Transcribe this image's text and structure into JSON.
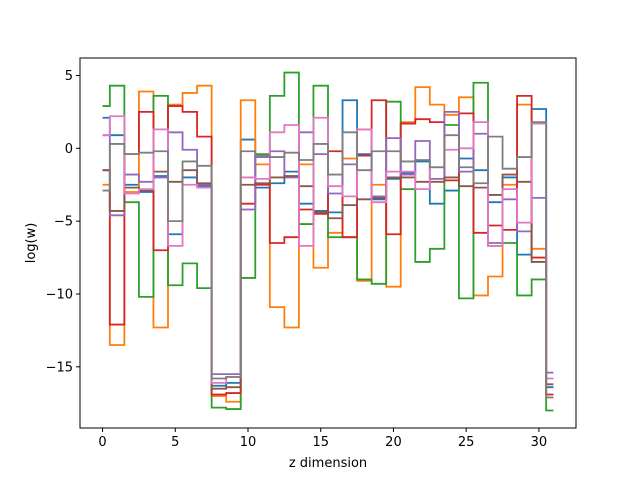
{
  "chart_data": {
    "type": "line",
    "style": "step",
    "xlabel": "z dimension",
    "ylabel": "log(w)",
    "xlim": [
      -1.55,
      32.55
    ],
    "ylim": [
      -19.2,
      6.2
    ],
    "xticks": [
      0,
      5,
      10,
      15,
      20,
      25,
      30
    ],
    "yticks": [
      5,
      0,
      -5,
      -10,
      -15
    ],
    "grid": false,
    "legend": "none",
    "x": [
      0,
      1,
      2,
      3,
      4,
      5,
      6,
      7,
      8,
      9,
      10,
      11,
      12,
      13,
      14,
      15,
      16,
      17,
      18,
      19,
      20,
      21,
      22,
      23,
      24,
      25,
      26,
      27,
      28,
      29,
      30,
      31
    ],
    "series": [
      {
        "color": "#1f77b4",
        "values": [
          2.1,
          0.9,
          -2.5,
          -3.0,
          -1.9,
          -5.9,
          -2.0,
          -2.6,
          -16.3,
          -16.1,
          0.6,
          -2.7,
          -2.4,
          -1.6,
          -3.8,
          -4.3,
          -4.4,
          3.3,
          -0.4,
          -3.5,
          -2.1,
          -1.7,
          -0.9,
          -3.8,
          -2.9,
          -0.7,
          -1.5,
          -3.7,
          -2.0,
          -7.3,
          2.7,
          -16.4
        ]
      },
      {
        "color": "#ff7f0e",
        "values": [
          -2.5,
          -13.5,
          -3.0,
          3.9,
          -12.3,
          3.0,
          3.8,
          4.3,
          -17.0,
          -17.4,
          3.3,
          -1.1,
          -10.9,
          -12.3,
          -1.1,
          -8.2,
          -5.8,
          -0.7,
          -9.1,
          -2.5,
          -9.5,
          1.8,
          4.2,
          3.0,
          2.3,
          3.5,
          -10.1,
          -8.8,
          -2.5,
          3.0,
          -6.9,
          -17.1
        ]
      },
      {
        "color": "#2ca02c",
        "values": [
          2.9,
          4.3,
          -3.7,
          -10.2,
          3.6,
          -9.4,
          -7.9,
          -9.6,
          -17.8,
          -17.9,
          -8.9,
          -0.4,
          3.6,
          5.2,
          -5.2,
          4.3,
          -6.1,
          -6.1,
          -9.0,
          -9.3,
          3.2,
          -2.8,
          -7.8,
          -6.9,
          1.6,
          -10.3,
          4.5,
          -6.7,
          -6.5,
          -10.1,
          -9.0,
          -18.0
        ]
      },
      {
        "color": "#d62728",
        "values": [
          -1.5,
          -12.1,
          -0.4,
          2.5,
          -7.0,
          2.9,
          2.5,
          0.8,
          -16.9,
          -16.8,
          -3.8,
          -2.5,
          -6.5,
          -6.1,
          -4.2,
          -4.5,
          -0.2,
          -6.1,
          -0.5,
          3.3,
          -5.9,
          1.7,
          2.0,
          1.8,
          -2.2,
          2.4,
          -5.8,
          -5.3,
          -5.6,
          3.6,
          -7.5,
          -16.9
        ]
      },
      {
        "color": "#9467bd",
        "values": [
          0.9,
          -4.6,
          -1.8,
          -2.3,
          -2.0,
          1.1,
          -0.1,
          -2.5,
          -15.5,
          -15.5,
          -4.2,
          -0.6,
          -0.2,
          -2.0,
          1.1,
          -0.4,
          -3.1,
          -1.1,
          1.3,
          -3.3,
          0.7,
          -1.8,
          0.5,
          -2.1,
          2.5,
          -1.6,
          1.0,
          -6.5,
          -3.5,
          -5.7,
          -3.4,
          -15.4
        ]
      },
      {
        "color": "#8c564b",
        "values": [
          -1.5,
          -4.3,
          -2.7,
          -2.9,
          -1.6,
          -2.3,
          -1.5,
          -2.4,
          -16.5,
          -16.4,
          -2.5,
          -2.4,
          -2.0,
          -1.9,
          -2.6,
          -4.4,
          -4.8,
          -3.9,
          -3.5,
          -3.4,
          -2.0,
          -2.0,
          -2.3,
          -2.3,
          -2.0,
          -2.6,
          -2.7,
          -3.2,
          -1.8,
          -2.3,
          -7.8,
          -16.2
        ]
      },
      {
        "color": "#e377c2",
        "values": [
          0.9,
          2.2,
          -3.1,
          -2.8,
          1.3,
          -6.7,
          -2.5,
          -2.7,
          -16.1,
          -15.7,
          -2.0,
          -2.1,
          1.1,
          1.6,
          -6.7,
          2.1,
          -2.6,
          -3.3,
          1.3,
          -3.7,
          -1.6,
          -1.6,
          -2.8,
          -1.3,
          -0.1,
          0.0,
          1.8,
          -6.7,
          -2.8,
          -5.1,
          1.7,
          -15.8
        ]
      },
      {
        "color": "#7f7f7f",
        "values": [
          -2.9,
          0.3,
          -0.4,
          -0.3,
          -0.2,
          -5.0,
          -0.9,
          -1.2,
          -15.8,
          -15.7,
          -0.2,
          -0.5,
          -0.6,
          -0.3,
          -0.8,
          0.3,
          -1.8,
          1.1,
          -1.5,
          -0.2,
          -0.2,
          -0.9,
          -0.8,
          -1.3,
          0.9,
          -1.3,
          -2.4,
          0.8,
          -1.4,
          -0.6,
          1.8,
          -17.1
        ]
      }
    ]
  }
}
